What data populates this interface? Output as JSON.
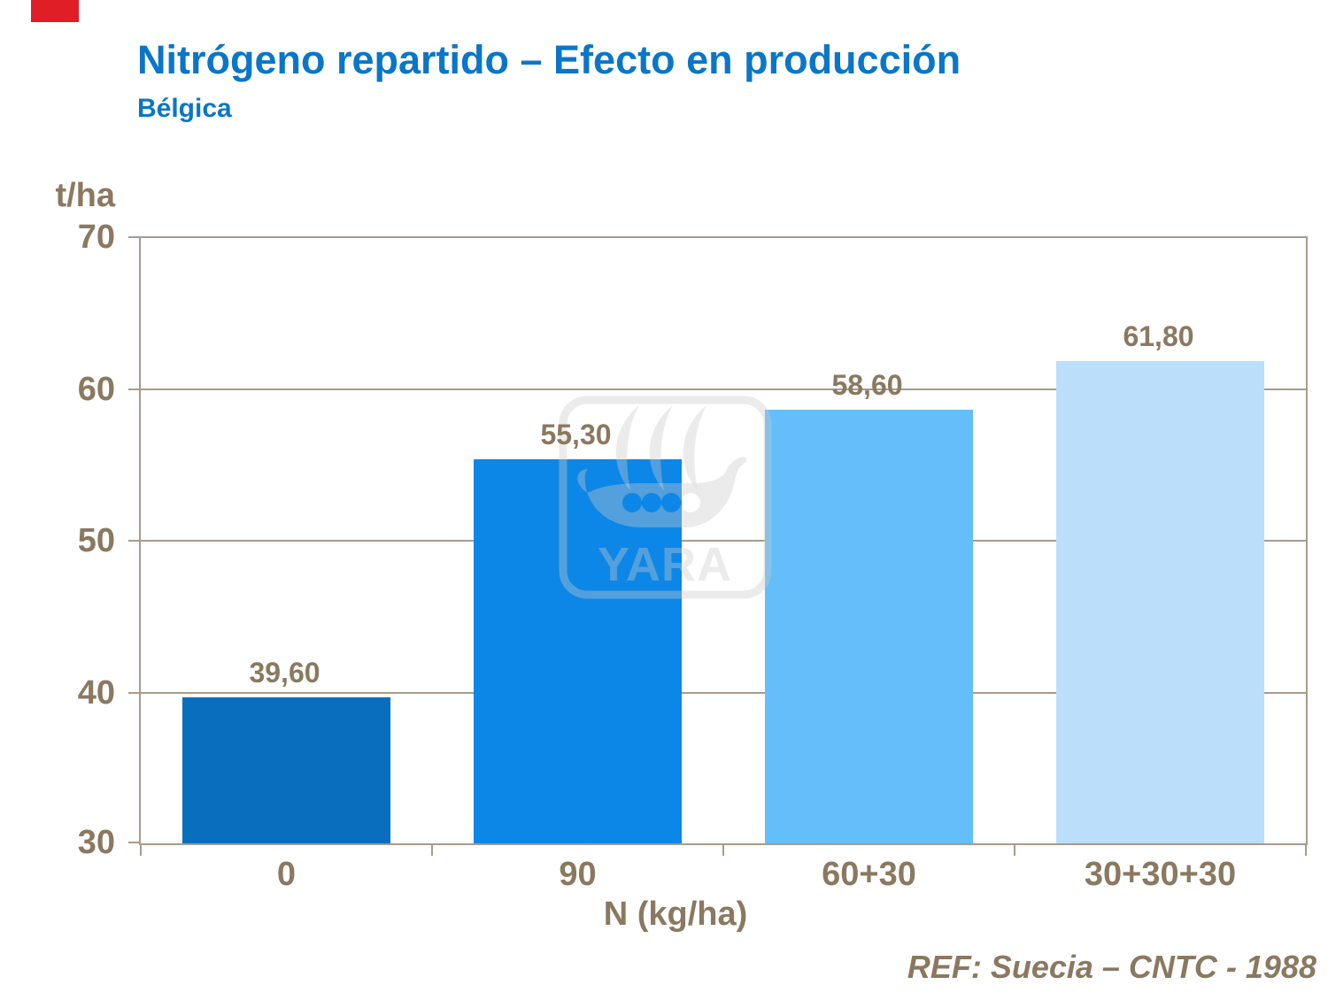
{
  "slide": {
    "title": "Nitrógeno repartido – Efecto en producción",
    "subtitle": "Bélgica",
    "reference": "REF: Suecia – CNTC - 1988",
    "corner_color": "#DF1E26"
  },
  "watermark": {
    "name": "yara-viking-ship-logo",
    "text": "YARA"
  },
  "chart_data": {
    "type": "bar",
    "title": "Nitrógeno repartido – Efecto en producción",
    "subtitle": "Bélgica",
    "categories": [
      "0",
      "90",
      "60+30",
      "30+30+30"
    ],
    "values": [
      39.6,
      55.3,
      58.6,
      61.8
    ],
    "value_labels": [
      "39,60",
      "55,30",
      "58,60",
      "61,80"
    ],
    "xlabel": "N (kg/ha)",
    "ylabel": "t/ha",
    "ylim": [
      30,
      70
    ],
    "yticks": [
      70,
      60,
      50,
      40,
      30
    ],
    "grid": true,
    "legend": false,
    "bar_colors": [
      "#0A6EBE",
      "#0C87E8",
      "#63BEFA",
      "#BBDEFA"
    ],
    "axis_color": "#A89B8C",
    "label_color": "#8A7960",
    "reference": "REF: Suecia – CNTC - 1988"
  }
}
